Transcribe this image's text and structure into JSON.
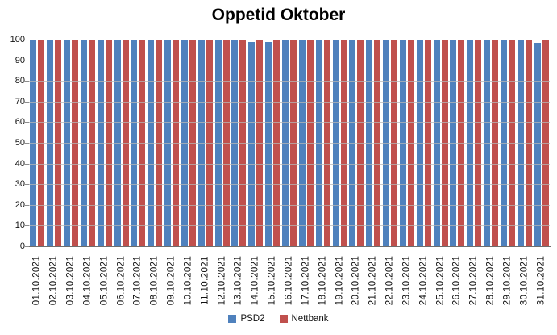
{
  "title": "Oppetid Oktober",
  "chart_data": {
    "type": "bar",
    "title": "Oppetid Oktober",
    "categories": [
      "01.10.2021",
      "02.10.2021",
      "03.10.2021",
      "04.10.2021",
      "05.10.2021",
      "06.10.2021",
      "07.10.2021",
      "08.10.2021",
      "09.10.2021",
      "10.10.2021",
      "11.10.2021",
      "12.10.2021",
      "13.10.2021",
      "14.10.2021",
      "15.10.2021",
      "16.10.2021",
      "17.10.2021",
      "18.10.2021",
      "19.10.2021",
      "20.10.2021",
      "21.10.2021",
      "22.10.2021",
      "23.10.2021",
      "24.10.2021",
      "25.10.2021",
      "26.10.2021",
      "27.10.2021",
      "28.10.2021",
      "29.10.2021",
      "30.10.2021",
      "31.10.2021"
    ],
    "series": [
      {
        "name": "PSD2",
        "color": "#4F81BD",
        "values": [
          100,
          100,
          100,
          100,
          100,
          100,
          100,
          100,
          100,
          100,
          100,
          100,
          100,
          99,
          99,
          100,
          100,
          100,
          100,
          100,
          100,
          100,
          100,
          100,
          100,
          100,
          100,
          100,
          100,
          100,
          98.5
        ]
      },
      {
        "name": "Nettbank",
        "color": "#C0504D",
        "values": [
          100,
          100,
          100,
          100,
          100,
          100,
          100,
          100,
          100,
          100,
          100,
          100,
          100,
          100,
          100,
          100,
          100,
          100,
          100,
          100,
          100,
          100,
          100,
          100,
          100,
          100,
          100,
          100,
          100,
          100,
          99.5
        ]
      }
    ],
    "xlabel": "",
    "ylabel": "",
    "ylim": [
      0,
      100
    ],
    "ytick_step": 10,
    "grid": true,
    "gridlines_over_bars": true,
    "legend_position": "bottom"
  },
  "colors": {
    "gridline": "#b7b7b7",
    "axis_line": "#6e6e6e",
    "label_text": "#111111"
  }
}
